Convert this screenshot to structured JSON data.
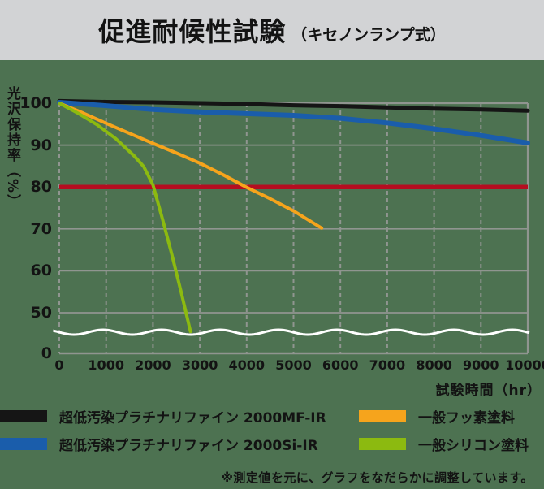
{
  "header": {
    "title": "促進耐候性試験",
    "subtitle": "（キセノンランプ式）"
  },
  "chart_data": {
    "type": "line",
    "title": "促進耐候性試験（キセノンランプ式）",
    "xlabel": "試験時間（hr）",
    "ylabel": "光沢保持率（%）",
    "xlim": [
      0,
      10000
    ],
    "ylim": [
      0,
      100
    ],
    "y_axis_break_between": [
      0,
      50
    ],
    "grid": "on",
    "x_ticks": [
      0,
      1000,
      2000,
      3000,
      4000,
      5000,
      6000,
      7000,
      8000,
      9000,
      10000
    ],
    "y_ticks": [
      100,
      90,
      80,
      70,
      60,
      50,
      0
    ],
    "threshold_line": {
      "value": 80,
      "color": "#b50d20"
    },
    "series": [
      {
        "name": "超低汚染プラチナリファイン 2000MF-IR",
        "color": "#151515",
        "width": 5,
        "points": [
          [
            0,
            100.5
          ],
          [
            1000,
            100.3
          ],
          [
            2000,
            100.2
          ],
          [
            3000,
            100.0
          ],
          [
            4000,
            99.8
          ],
          [
            5000,
            99.5
          ],
          [
            6000,
            99.3
          ],
          [
            7000,
            99.0
          ],
          [
            8000,
            98.7
          ],
          [
            9000,
            98.5
          ],
          [
            10000,
            98.2
          ]
        ]
      },
      {
        "name": "超低汚染プラチナリファイン 2000Si-IR",
        "color": "#1a5dab",
        "width": 6,
        "points": [
          [
            0,
            100.2
          ],
          [
            1000,
            99.4
          ],
          [
            2000,
            98.5
          ],
          [
            3000,
            97.9
          ],
          [
            4000,
            97.5
          ],
          [
            5000,
            97.1
          ],
          [
            6000,
            96.4
          ],
          [
            7000,
            95.3
          ],
          [
            8000,
            93.9
          ],
          [
            9000,
            92.3
          ],
          [
            10000,
            90.5
          ]
        ]
      },
      {
        "name": "一般フッ素塗料",
        "color": "#f6a41c",
        "width": 4,
        "points": [
          [
            0,
            100
          ],
          [
            500,
            97.7
          ],
          [
            1000,
            95.2
          ],
          [
            1500,
            92.8
          ],
          [
            2000,
            90.4
          ],
          [
            2500,
            88.1
          ],
          [
            3000,
            85.7
          ],
          [
            3500,
            82.9
          ],
          [
            4000,
            79.9
          ],
          [
            4500,
            77.2
          ],
          [
            5000,
            74.3
          ],
          [
            5600,
            70.2
          ]
        ]
      },
      {
        "name": "一般シリコン塗料",
        "color": "#8cba10",
        "width": 4,
        "points": [
          [
            0,
            100
          ],
          [
            400,
            97.6
          ],
          [
            800,
            94.9
          ],
          [
            1200,
            91.6
          ],
          [
            1600,
            87.4
          ],
          [
            1800,
            84.9
          ],
          [
            2000,
            80.5
          ],
          [
            2200,
            72.5
          ],
          [
            2400,
            64.0
          ],
          [
            2600,
            55.0
          ],
          [
            2800,
            45.5
          ]
        ]
      }
    ]
  },
  "legend": {
    "items": [
      {
        "label": "超低汚染プラチナリファイン 2000MF-IR",
        "color": "#151515"
      },
      {
        "label": "超低汚染プラチナリファイン 2000Si-IR",
        "color": "#1a5dab"
      },
      {
        "label": "一般フッ素塗料",
        "color": "#f6a41c"
      },
      {
        "label": "一般シリコン塗料",
        "color": "#8cba10"
      }
    ]
  },
  "note": "※測定値を元に、グラフをなだらかに調整しています。",
  "colors": {
    "title_bar_bg": "#d2d3d5",
    "background": "#4d7251",
    "grid": "#909590",
    "axis_break_wave": "#ffffff",
    "threshold_red": "#b50d20",
    "text": "#131313"
  }
}
